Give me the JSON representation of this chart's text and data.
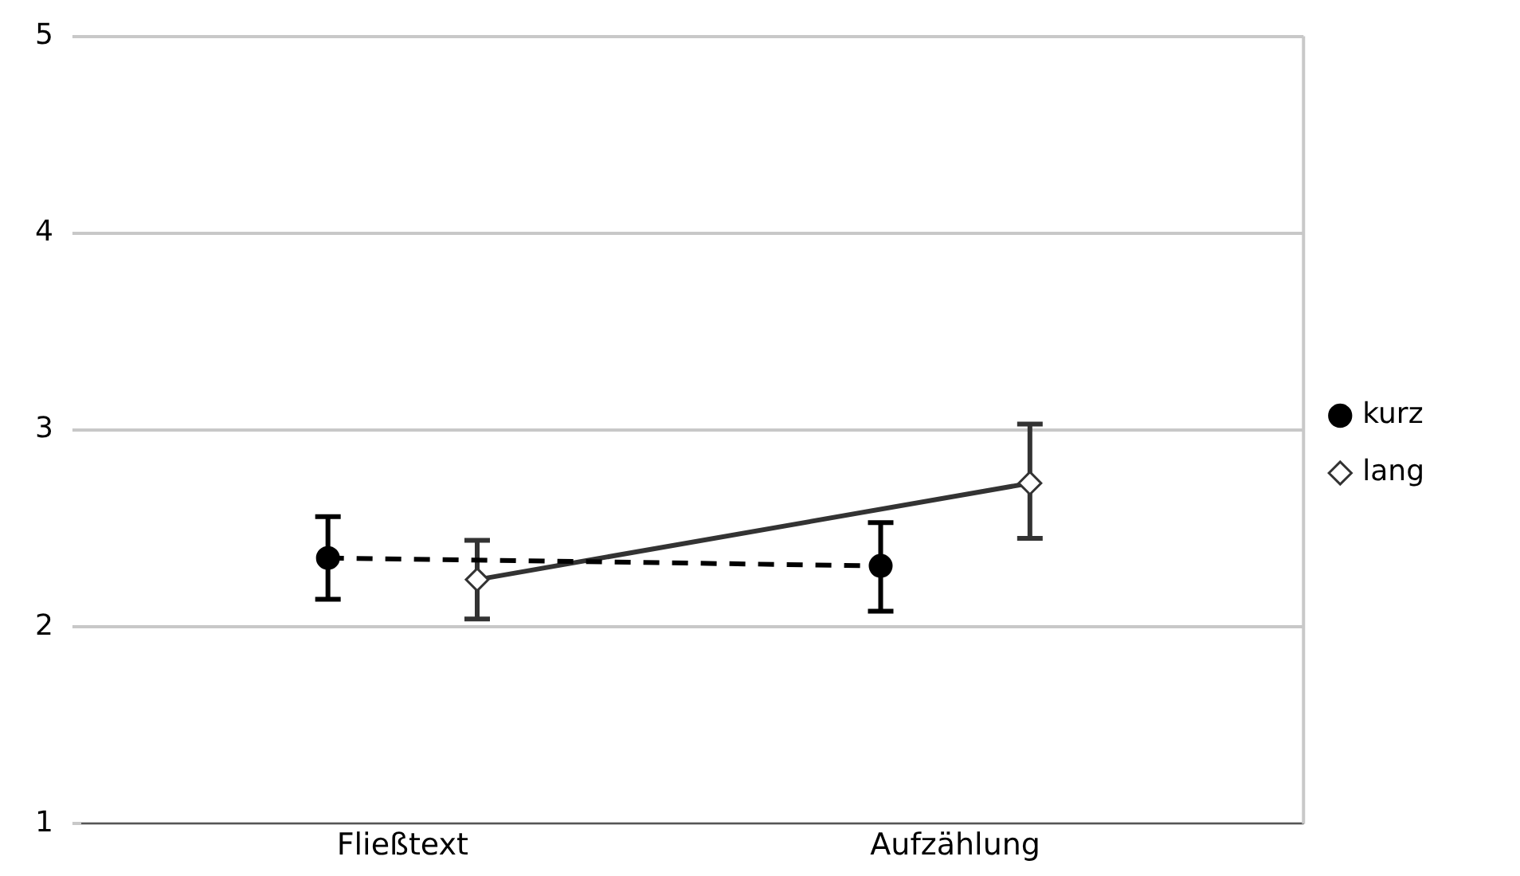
{
  "chart_data": {
    "type": "line",
    "categories": [
      "Fließtext",
      "Aufzählung"
    ],
    "series": [
      {
        "name": "kurz",
        "color": "#000000",
        "marker": "circle",
        "line_style": "dashed",
        "values": [
          2.35,
          2.31
        ],
        "errors": [
          [
            2.14,
            2.56
          ],
          [
            2.08,
            2.53
          ]
        ]
      },
      {
        "name": "lang",
        "color": "#333333",
        "marker": "diamond",
        "line_style": "solid",
        "values": [
          2.24,
          2.73
        ],
        "errors": [
          [
            2.04,
            2.44
          ],
          [
            2.45,
            3.03
          ]
        ]
      }
    ],
    "ylim": [
      1,
      5
    ],
    "yticks": [
      1,
      2,
      3,
      4,
      5
    ],
    "grid": "y",
    "legend": "right"
  }
}
